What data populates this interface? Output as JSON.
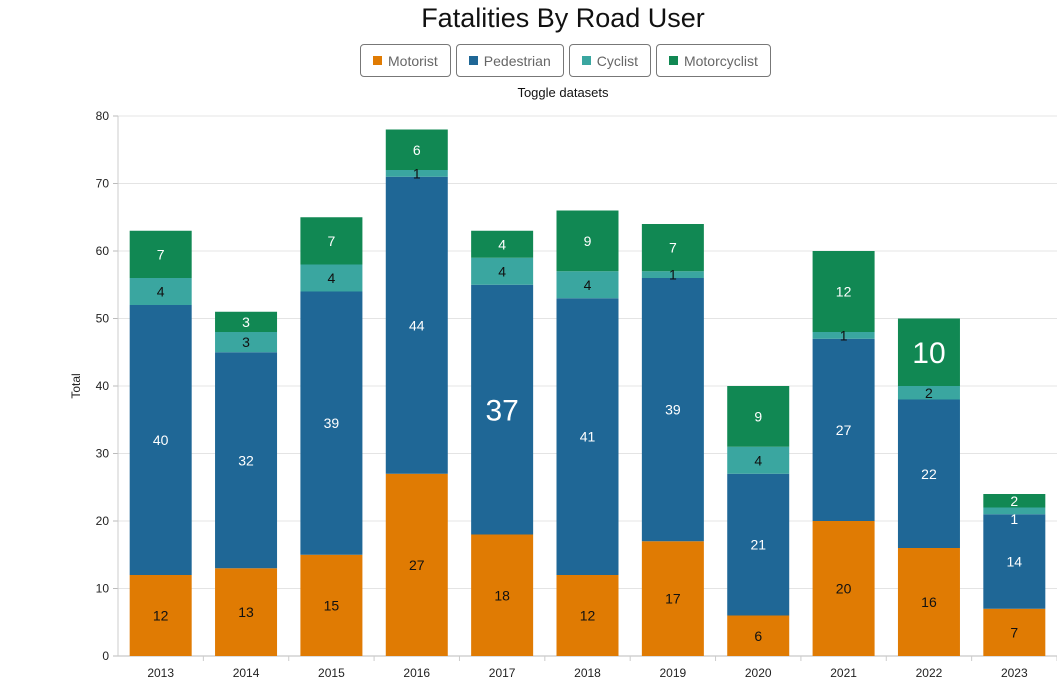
{
  "title": "Fatalities By Road User",
  "toggle_label": "Toggle datasets",
  "chart_data": {
    "type": "bar",
    "stacked": true,
    "title": "Fatalities By Road User",
    "xlabel": "",
    "ylabel": "Total",
    "ylim": [
      0,
      80
    ],
    "yticks": [
      0,
      10,
      20,
      30,
      40,
      50,
      60,
      70,
      80
    ],
    "grid": true,
    "legend": "top",
    "categories": [
      "2013",
      "2014",
      "2015",
      "2016",
      "2017",
      "2018",
      "2019",
      "2020",
      "2021",
      "2022",
      "2023"
    ],
    "series": [
      {
        "name": "Motorist",
        "color": "#e07b03",
        "label_color": "#111111",
        "values": [
          12,
          13,
          15,
          27,
          18,
          12,
          17,
          6,
          20,
          16,
          7
        ]
      },
      {
        "name": "Pedestrian",
        "color": "#1f6796",
        "label_color": "#ffffff",
        "values": [
          40,
          32,
          39,
          44,
          37,
          41,
          39,
          21,
          27,
          22,
          14
        ]
      },
      {
        "name": "Cyclist",
        "color": "#3aa6a0",
        "label_color": "#111111",
        "values": [
          4,
          3,
          4,
          1,
          4,
          4,
          1,
          4,
          1,
          2,
          1
        ]
      },
      {
        "name": "Motorcyclist",
        "color": "#118853",
        "label_color": "#ffffff",
        "values": [
          7,
          3,
          7,
          6,
          4,
          9,
          7,
          9,
          12,
          10,
          2
        ]
      }
    ],
    "highlighted_labels": [
      {
        "series": "Pedestrian",
        "category": "2017"
      },
      {
        "series": "Motorcyclist",
        "category": "2022"
      }
    ]
  }
}
